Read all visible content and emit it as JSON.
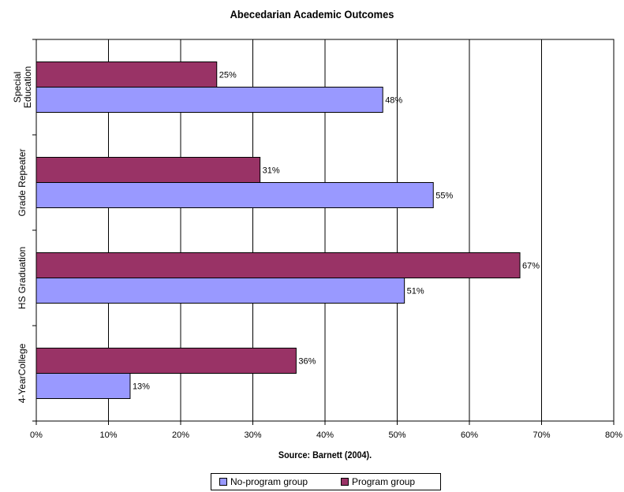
{
  "chart_data": {
    "type": "bar",
    "orientation": "horizontal",
    "title": "Abecedarian Academic Outcomes",
    "xlabel": "Source: Barnett (2004).",
    "ylabel": "",
    "categories": [
      "Special Education",
      "Grade Repeater",
      "HS Graduation",
      "4-YearCollege"
    ],
    "series": [
      {
        "name": "Program group",
        "color": "#993366",
        "values": [
          25,
          31,
          67,
          36
        ],
        "labels": [
          "25%",
          "31%",
          "67%",
          "36%"
        ]
      },
      {
        "name": "No-program group",
        "color": "#9999FF",
        "values": [
          48,
          55,
          51,
          13
        ],
        "labels": [
          "48%",
          "55%",
          "51%",
          "13%"
        ]
      }
    ],
    "xlim": [
      0,
      80
    ],
    "xticks": [
      "0%",
      "10%",
      "20%",
      "30%",
      "40%",
      "50%",
      "60%",
      "70%",
      "80%"
    ],
    "grid": true,
    "legend_position": "bottom",
    "legend": [
      "No-program group",
      "Program group"
    ]
  }
}
